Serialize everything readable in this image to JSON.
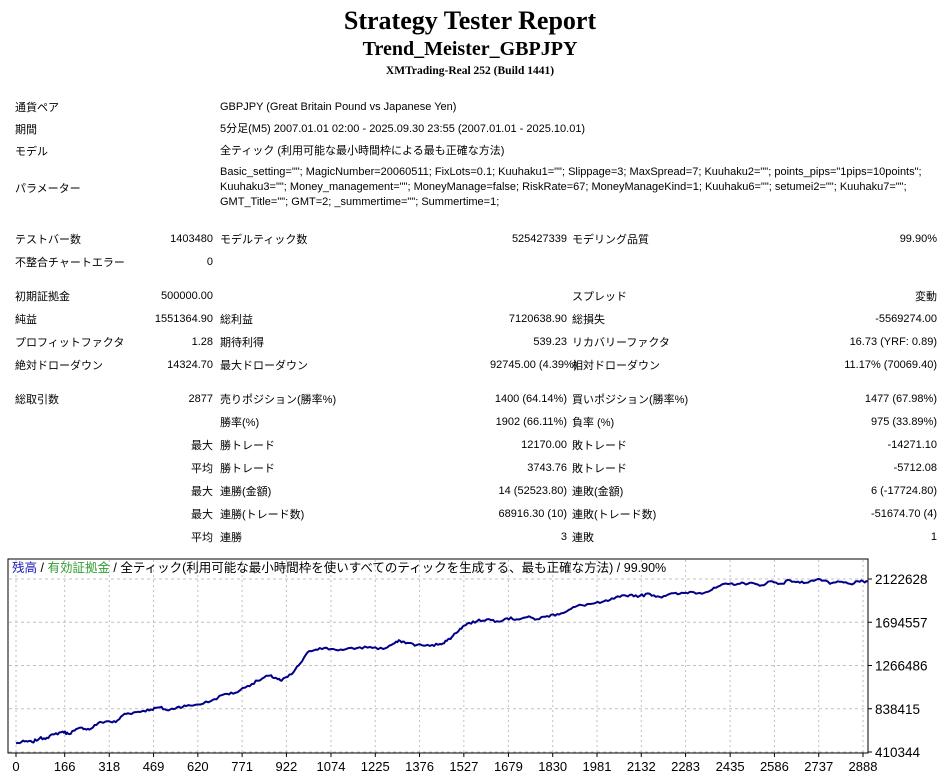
{
  "header": {
    "title": "Strategy Tester Report",
    "ea_name": "Trend_Meister_GBPJPY",
    "server_build": "XMTrading-Real 252 (Build 1441)"
  },
  "info_rows": [
    {
      "label": "通貨ペア",
      "value": "GBPJPY (Great Britain Pound vs Japanese Yen)"
    },
    {
      "label": "期間",
      "value": "5分足(M5) 2007.01.01 02:00 - 2025.09.30 23:55 (2007.01.01 - 2025.10.01)"
    },
    {
      "label": "モデル",
      "value": "全ティック (利用可能な最小時間枠による最も正確な方法)"
    },
    {
      "label": "パラメーター",
      "value": "Basic_setting=\"\"; MagicNumber=20060511; FixLots=0.1; Kuuhaku1=\"\"; Slippage=3; MaxSpread=7; Kuuhaku2=\"\"; points_pips=\"1pips=10points\"; Kuuhaku3=\"\"; Money_management=\"\"; MoneyManage=false; RiskRate=67; MoneyManageKind=1; Kuuhaku6=\"\"; setumei2=\"\"; Kuuhaku7=\"\"; GMT_Title=\"\"; GMT=2; _summertime=\"\"; Summertime=1;"
    }
  ],
  "stats_rows": [
    {
      "c1": "テストバー数",
      "c2": "1403480",
      "c3": "モデルティック数",
      "c4": "525427339",
      "c5": "モデリング品質",
      "c6": "99.90%"
    },
    {
      "c1": "不整合チャートエラー",
      "c2": "0",
      "c3": "",
      "c4": "",
      "c5": "",
      "c6": ""
    },
    {
      "spacer": true
    },
    {
      "c1": "初期証拠金",
      "c2": "500000.00",
      "c3": "",
      "c4": "",
      "c5": "スプレッド",
      "c6": "変動"
    },
    {
      "c1": "純益",
      "c2": "1551364.90",
      "c3": "総利益",
      "c4": "7120638.90",
      "c5": "総損失",
      "c6": "-5569274.00"
    },
    {
      "c1": "プロフィットファクタ",
      "c2": "1.28",
      "c3": "期待利得",
      "c4": "539.23",
      "c5": "リカバリーファクタ",
      "c6": "16.73 (YRF: 0.89)"
    },
    {
      "c1": "絶対ドローダウン",
      "c2": "14324.70",
      "c3": "最大ドローダウン",
      "c4": "92745.00 (4.39%)",
      "c5": "相対ドローダウン",
      "c6": "11.17% (70069.40)"
    },
    {
      "spacer": true
    },
    {
      "c1": "総取引数",
      "c2": "2877",
      "c3": "売りポジション(勝率%)",
      "c4": "1400 (64.14%)",
      "c5": "買いポジション(勝率%)",
      "c6": "1477 (67.98%)"
    },
    {
      "c1": "",
      "c2": "",
      "c3": "勝率(%)",
      "c4": "1902 (66.11%)",
      "c5": "負率 (%)",
      "c6": "975 (33.89%)"
    },
    {
      "c1": "",
      "c2": "最大",
      "c3": "勝トレード",
      "c4": "12170.00",
      "c5": "敗トレード",
      "c6": "-14271.10"
    },
    {
      "c1": "",
      "c2": "平均",
      "c3": "勝トレード",
      "c4": "3743.76",
      "c5": "敗トレード",
      "c6": "-5712.08"
    },
    {
      "c1": "",
      "c2": "最大",
      "c3": "連勝(金額)",
      "c4": "14 (52523.80)",
      "c5": "連敗(金額)",
      "c6": "6 (-17724.80)"
    },
    {
      "c1": "",
      "c2": "最大",
      "c3": "連勝(トレード数)",
      "c4": "68916.30 (10)",
      "c5": "連敗(トレード数)",
      "c6": "-51674.70 (4)"
    },
    {
      "c1": "",
      "c2": "平均",
      "c3": "連勝",
      "c4": "3",
      "c5": "連敗",
      "c6": "1"
    }
  ],
  "chart_data": {
    "type": "line",
    "title": "残高 / 有効証拠金 / 全ティック(利用可能な最小時間枠を使いすべてのティックを生成する、最も正確な方法) / 99.90%",
    "legend": [
      {
        "label": "残高",
        "color": "#1818b4"
      },
      {
        "label": "有効証拠金",
        "color": "#2f9e2f"
      },
      {
        "label": "全ティック(利用可能な最小時間枠を使いすべてのティックを生成する、最も正確な方法) / 99.90%",
        "color": "#000000"
      }
    ],
    "separator": " / ",
    "x_ticks": [
      0,
      166,
      318,
      469,
      620,
      771,
      922,
      1074,
      1225,
      1376,
      1527,
      1679,
      1830,
      1981,
      2132,
      2283,
      2435,
      2586,
      2737,
      2888
    ],
    "y_ticks": [
      410344,
      838415,
      1266486,
      1694557,
      2122628
    ],
    "xlim": [
      0,
      2905
    ],
    "ylim": [
      410344,
      2135000
    ],
    "xlabel": "",
    "ylabel": "",
    "grid": true,
    "line_color": "#000088",
    "grid_color": "#c0c0c0",
    "series": [
      {
        "name": "残高",
        "points": [
          [
            0,
            495000
          ],
          [
            30,
            515000
          ],
          [
            55,
            508000
          ],
          [
            80,
            545000
          ],
          [
            105,
            552000
          ],
          [
            130,
            585000
          ],
          [
            160,
            612000
          ],
          [
            178,
            590000
          ],
          [
            200,
            622000
          ],
          [
            225,
            652000
          ],
          [
            250,
            632000
          ],
          [
            280,
            695000
          ],
          [
            310,
            715000
          ],
          [
            340,
            705000
          ],
          [
            370,
            788000
          ],
          [
            400,
            800000
          ],
          [
            430,
            815000
          ],
          [
            460,
            832000
          ],
          [
            490,
            852000
          ],
          [
            520,
            822000
          ],
          [
            550,
            855000
          ],
          [
            580,
            865000
          ],
          [
            620,
            880000
          ],
          [
            665,
            915000
          ],
          [
            713,
            985000
          ],
          [
            747,
            995000
          ],
          [
            790,
            1065000
          ],
          [
            825,
            1115000
          ],
          [
            860,
            1165000
          ],
          [
            885,
            1145000
          ],
          [
            905,
            1115000
          ],
          [
            940,
            1180000
          ],
          [
            970,
            1290000
          ],
          [
            1000,
            1410000
          ],
          [
            1036,
            1440000
          ],
          [
            1074,
            1430000
          ],
          [
            1115,
            1420000
          ],
          [
            1163,
            1440000
          ],
          [
            1207,
            1450000
          ],
          [
            1252,
            1430000
          ],
          [
            1286,
            1480000
          ],
          [
            1310,
            1510000
          ],
          [
            1333,
            1490000
          ],
          [
            1367,
            1470000
          ],
          [
            1412,
            1460000
          ],
          [
            1446,
            1480000
          ],
          [
            1469,
            1510000
          ],
          [
            1490,
            1560000
          ],
          [
            1514,
            1630000
          ],
          [
            1538,
            1680000
          ],
          [
            1572,
            1705000
          ],
          [
            1606,
            1725000
          ],
          [
            1640,
            1705000
          ],
          [
            1674,
            1735000
          ],
          [
            1708,
            1725000
          ],
          [
            1742,
            1745000
          ],
          [
            1777,
            1725000
          ],
          [
            1811,
            1755000
          ],
          [
            1845,
            1775000
          ],
          [
            1879,
            1805000
          ],
          [
            1913,
            1855000
          ],
          [
            1957,
            1875000
          ],
          [
            1991,
            1885000
          ],
          [
            2025,
            1915000
          ],
          [
            2059,
            1945000
          ],
          [
            2093,
            1965000
          ],
          [
            2127,
            1955000
          ],
          [
            2161,
            1975000
          ],
          [
            2195,
            1945000
          ],
          [
            2229,
            1975000
          ],
          [
            2263,
            1975000
          ],
          [
            2297,
            1995000
          ],
          [
            2332,
            1985000
          ],
          [
            2366,
            2005000
          ],
          [
            2400,
            2055000
          ],
          [
            2434,
            2075000
          ],
          [
            2468,
            2075000
          ],
          [
            2502,
            2085000
          ],
          [
            2536,
            2055000
          ],
          [
            2571,
            2100000
          ],
          [
            2605,
            2075000
          ],
          [
            2639,
            2110000
          ],
          [
            2673,
            2085000
          ],
          [
            2707,
            2100000
          ],
          [
            2741,
            2122000
          ],
          [
            2775,
            2075000
          ],
          [
            2809,
            2095000
          ],
          [
            2843,
            2075000
          ],
          [
            2877,
            2095000
          ],
          [
            2905,
            2098000
          ]
        ]
      }
    ]
  }
}
